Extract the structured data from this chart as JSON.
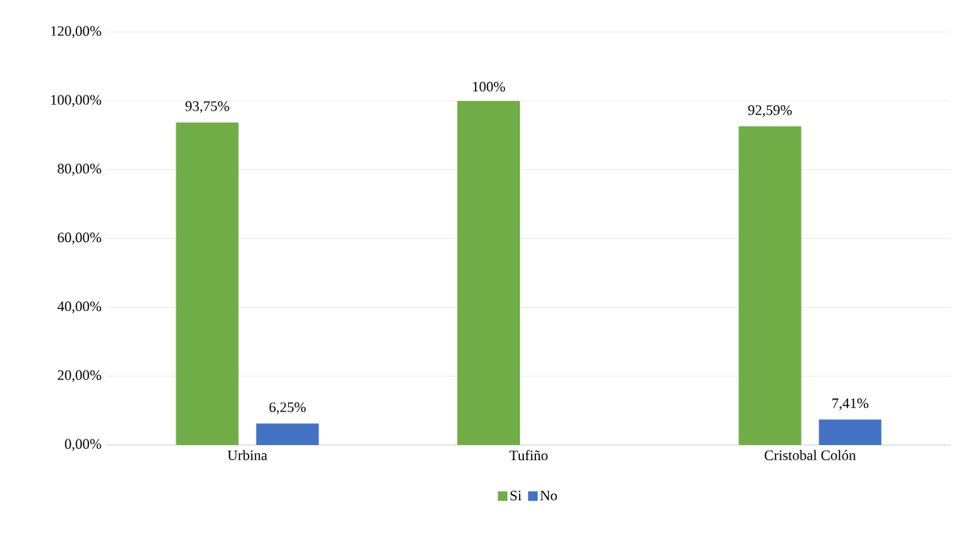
{
  "chart_data": {
    "type": "bar",
    "categories": [
      "Urbina",
      "Tufiño",
      "Cristobal Colón"
    ],
    "series": [
      {
        "name": "Si",
        "color": "#70ad47",
        "values": [
          93.75,
          100,
          92.59
        ],
        "value_labels": [
          "93,75%",
          "100%",
          "92,59%"
        ]
      },
      {
        "name": "No",
        "color": "#4472c4",
        "values": [
          6.25,
          null,
          7.41
        ],
        "value_labels": [
          "6,25%",
          null,
          "7,41%"
        ]
      }
    ],
    "ylim": [
      0,
      120
    ],
    "yticks": [
      {
        "value": 0,
        "label": "0,00%"
      },
      {
        "value": 20,
        "label": "20,00%"
      },
      {
        "value": 40,
        "label": "40,00%"
      },
      {
        "value": 60,
        "label": "60,00%"
      },
      {
        "value": 80,
        "label": "80,00%"
      },
      {
        "value": 100,
        "label": "100,00%"
      },
      {
        "value": 120,
        "label": "120,00%"
      }
    ],
    "grid": "y",
    "legend": "bottom"
  }
}
